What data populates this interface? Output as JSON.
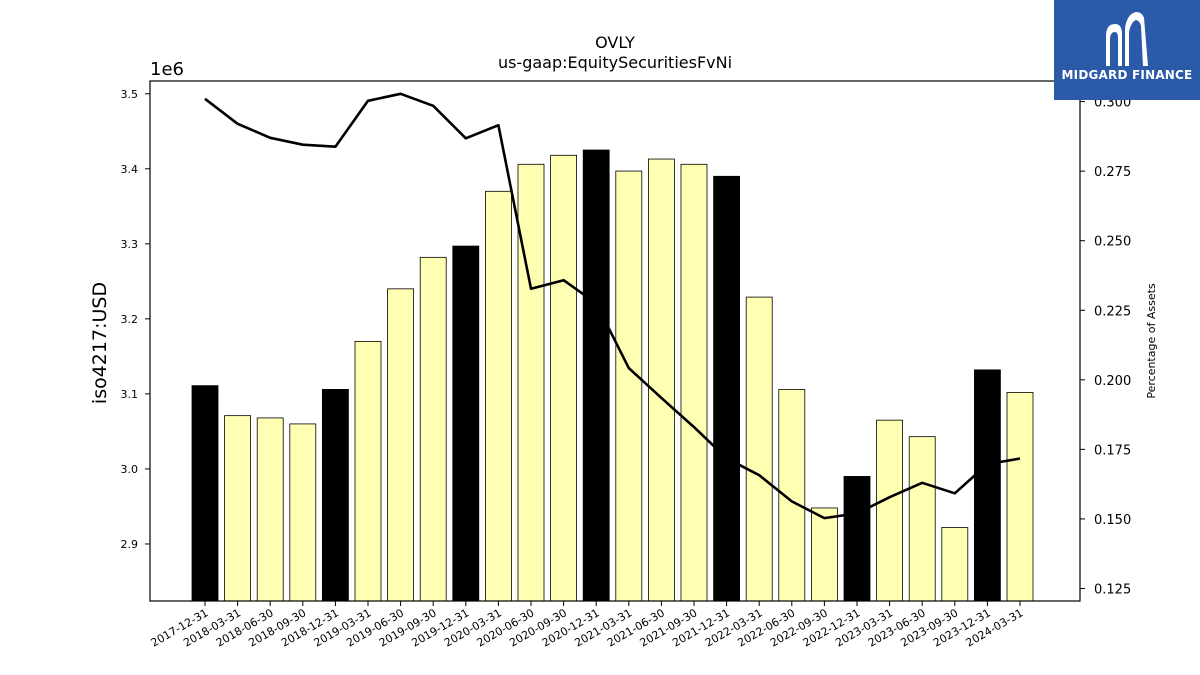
{
  "chart_data": {
    "type": "bar",
    "title": "OVLY",
    "subtitle": "us-gaap:EquitySecuritiesFvNi",
    "ylabel": "iso4217:USD",
    "y_offset_label": "1e6",
    "y2label": "Percentage of Assets",
    "categories": [
      "2017-12-31",
      "2018-03-31",
      "2018-06-30",
      "2018-09-30",
      "2018-12-31",
      "2019-03-31",
      "2019-06-30",
      "2019-09-30",
      "2019-12-31",
      "2020-03-31",
      "2020-06-30",
      "2020-09-30",
      "2020-12-31",
      "2021-03-31",
      "2021-06-30",
      "2021-09-30",
      "2021-12-31",
      "2022-03-31",
      "2022-06-30",
      "2022-09-30",
      "2022-12-31",
      "2023-03-31",
      "2023-06-30",
      "2023-09-30",
      "2023-12-31",
      "2024-03-31"
    ],
    "values": [
      3111000,
      3071000,
      3068000,
      3060000,
      3106000,
      3170000,
      3240000,
      3282000,
      3297000,
      3370000,
      3406000,
      3418000,
      3425000,
      3397000,
      3413000,
      3406000,
      3390000,
      3229000,
      3106000,
      2948000,
      2990000,
      3065000,
      3043000,
      2922000,
      3132000,
      3102000
    ],
    "year_end": [
      true,
      false,
      false,
      false,
      true,
      false,
      false,
      false,
      true,
      false,
      false,
      false,
      true,
      false,
      false,
      false,
      true,
      false,
      false,
      false,
      true,
      false,
      false,
      false,
      true,
      false
    ],
    "pct_assets": [
      0.301,
      0.292,
      0.287,
      0.2845,
      0.2838,
      0.3003,
      0.3028,
      0.2985,
      0.2868,
      0.2915,
      0.2327,
      0.2358,
      0.2275,
      0.2042,
      0.1935,
      0.183,
      0.1718,
      0.1657,
      0.1563,
      0.1503,
      0.152,
      0.1578,
      0.163,
      0.1592,
      0.1697,
      0.1717
    ],
    "ylim": [
      2824000,
      3517000
    ],
    "y2lim": [
      0.1205,
      0.3074
    ],
    "yticks": [
      2.9,
      3.0,
      3.1,
      3.2,
      3.3,
      3.4,
      3.5
    ],
    "y2ticks": [
      "0.125",
      "0.150",
      "0.175",
      "0.200",
      "0.225",
      "0.250",
      "0.275",
      "0.300"
    ],
    "colors": {
      "bar": "#ffffb3",
      "bar_year_end": "#000000",
      "line": "#000000"
    },
    "grid": false,
    "legend": "none"
  },
  "logo": {
    "text": "MIDGARD FINANCE",
    "color": "#2a5aa8"
  }
}
